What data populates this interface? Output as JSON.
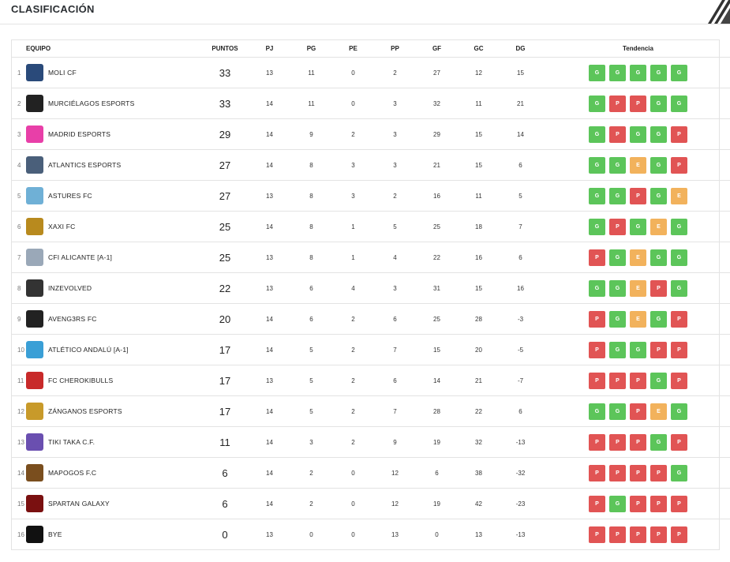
{
  "page": {
    "title": "CLASIFICACIÓN"
  },
  "columns": {
    "team": "EQUIPO",
    "pts": "PUNTOS",
    "pj": "PJ",
    "pg": "PG",
    "pe": "PE",
    "pp": "PP",
    "gf": "GF",
    "gc": "GC",
    "dg": "DG",
    "trend": "Tendencia"
  },
  "colors": {
    "win": "#5cc55a",
    "loss": "#e15454",
    "draw": "#f2b25c"
  },
  "rows": [
    {
      "pos": "1",
      "team": "MOLI CF",
      "logo": "moli-cf-logo",
      "logo_color": "#2a4a7a",
      "pts": "33",
      "pj": "13",
      "pg": "11",
      "pe": "0",
      "pp": "2",
      "gf": "27",
      "gc": "12",
      "dg": "15",
      "trend": [
        "G",
        "G",
        "G",
        "G",
        "G"
      ]
    },
    {
      "pos": "2",
      "team": "MURCIÉLAGOS ESPORTS",
      "logo": "bat-logo",
      "logo_color": "#222222",
      "pts": "33",
      "pj": "14",
      "pg": "11",
      "pe": "0",
      "pp": "3",
      "gf": "32",
      "gc": "11",
      "dg": "21",
      "trend": [
        "G",
        "P",
        "P",
        "G",
        "G"
      ]
    },
    {
      "pos": "3",
      "team": "MADRID ESPORTS",
      "logo": "madrid-esports-logo",
      "logo_color": "#e83fa8",
      "pts": "29",
      "pj": "14",
      "pg": "9",
      "pe": "2",
      "pp": "3",
      "gf": "29",
      "gc": "15",
      "dg": "14",
      "trend": [
        "G",
        "P",
        "G",
        "G",
        "P"
      ]
    },
    {
      "pos": "4",
      "team": "ATLANTICS ESPORTS",
      "logo": "atlantics-logo",
      "logo_color": "#4a5f7a",
      "pts": "27",
      "pj": "14",
      "pg": "8",
      "pe": "3",
      "pp": "3",
      "gf": "21",
      "gc": "15",
      "dg": "6",
      "trend": [
        "G",
        "G",
        "E",
        "G",
        "P"
      ]
    },
    {
      "pos": "5",
      "team": "ASTURES FC",
      "logo": "astures-logo",
      "logo_color": "#6fb0d6",
      "pts": "27",
      "pj": "13",
      "pg": "8",
      "pe": "3",
      "pp": "2",
      "gf": "16",
      "gc": "11",
      "dg": "5",
      "trend": [
        "G",
        "G",
        "P",
        "G",
        "E"
      ]
    },
    {
      "pos": "6",
      "team": "XAXI FC",
      "logo": "xaxi-logo",
      "logo_color": "#b88a1e",
      "pts": "25",
      "pj": "14",
      "pg": "8",
      "pe": "1",
      "pp": "5",
      "gf": "25",
      "gc": "18",
      "dg": "7",
      "trend": [
        "G",
        "P",
        "G",
        "E",
        "G"
      ]
    },
    {
      "pos": "7",
      "team": "CFI ALICANTE [A-1]",
      "logo": "alicante-logo",
      "logo_color": "#9aa8b8",
      "pts": "25",
      "pj": "13",
      "pg": "8",
      "pe": "1",
      "pp": "4",
      "gf": "22",
      "gc": "16",
      "dg": "6",
      "trend": [
        "P",
        "G",
        "E",
        "G",
        "G"
      ]
    },
    {
      "pos": "8",
      "team": "INZEVOLVED",
      "logo": "inzevolved-logo",
      "logo_color": "#333333",
      "pts": "22",
      "pj": "13",
      "pg": "6",
      "pe": "4",
      "pp": "3",
      "gf": "31",
      "gc": "15",
      "dg": "16",
      "trend": [
        "G",
        "G",
        "E",
        "P",
        "G"
      ]
    },
    {
      "pos": "9",
      "team": "AVENG3RS FC",
      "logo": "avengers-logo",
      "logo_color": "#222222",
      "pts": "20",
      "pj": "14",
      "pg": "6",
      "pe": "2",
      "pp": "6",
      "gf": "25",
      "gc": "28",
      "dg": "-3",
      "trend": [
        "P",
        "G",
        "E",
        "G",
        "P"
      ]
    },
    {
      "pos": "10",
      "team": "ATLÉTICO ANDALÚ [A-1]",
      "logo": "atletico-andalu-logo",
      "logo_color": "#3a9fd6",
      "pts": "17",
      "pj": "14",
      "pg": "5",
      "pe": "2",
      "pp": "7",
      "gf": "15",
      "gc": "20",
      "dg": "-5",
      "trend": [
        "P",
        "G",
        "G",
        "P",
        "P"
      ]
    },
    {
      "pos": "11",
      "team": "FC CHEROKIBULLS",
      "logo": "cherokibulls-logo",
      "logo_color": "#c82a2a",
      "pts": "17",
      "pj": "13",
      "pg": "5",
      "pe": "2",
      "pp": "6",
      "gf": "14",
      "gc": "21",
      "dg": "-7",
      "trend": [
        "P",
        "P",
        "P",
        "G",
        "P"
      ]
    },
    {
      "pos": "12",
      "team": "ZÁNGANOS ESPORTS",
      "logo": "zanganos-logo",
      "logo_color": "#c89a2a",
      "pts": "17",
      "pj": "14",
      "pg": "5",
      "pe": "2",
      "pp": "7",
      "gf": "28",
      "gc": "22",
      "dg": "6",
      "trend": [
        "G",
        "G",
        "P",
        "E",
        "G"
      ]
    },
    {
      "pos": "13",
      "team": "TIKI TAKA C.F.",
      "logo": "tiki-taka-logo",
      "logo_color": "#6a4fb0",
      "pts": "11",
      "pj": "14",
      "pg": "3",
      "pe": "2",
      "pp": "9",
      "gf": "19",
      "gc": "32",
      "dg": "-13",
      "trend": [
        "P",
        "P",
        "P",
        "G",
        "P"
      ]
    },
    {
      "pos": "14",
      "team": "MAPOGOS F.C",
      "logo": "mapogos-logo",
      "logo_color": "#7a4e1e",
      "pts": "6",
      "pj": "14",
      "pg": "2",
      "pe": "0",
      "pp": "12",
      "gf": "6",
      "gc": "38",
      "dg": "-32",
      "trend": [
        "P",
        "P",
        "P",
        "P",
        "G"
      ]
    },
    {
      "pos": "15",
      "team": "SPARTAN GALAXY",
      "logo": "spartan-logo",
      "logo_color": "#7a1010",
      "pts": "6",
      "pj": "14",
      "pg": "2",
      "pe": "0",
      "pp": "12",
      "gf": "19",
      "gc": "42",
      "dg": "-23",
      "trend": [
        "P",
        "G",
        "P",
        "P",
        "P"
      ]
    },
    {
      "pos": "16",
      "team": "BYE",
      "logo": "bye-logo",
      "logo_color": "#111111",
      "pts": "0",
      "pj": "13",
      "pg": "0",
      "pe": "0",
      "pp": "13",
      "gf": "0",
      "gc": "13",
      "dg": "-13",
      "trend": [
        "P",
        "P",
        "P",
        "P",
        "P"
      ]
    }
  ]
}
